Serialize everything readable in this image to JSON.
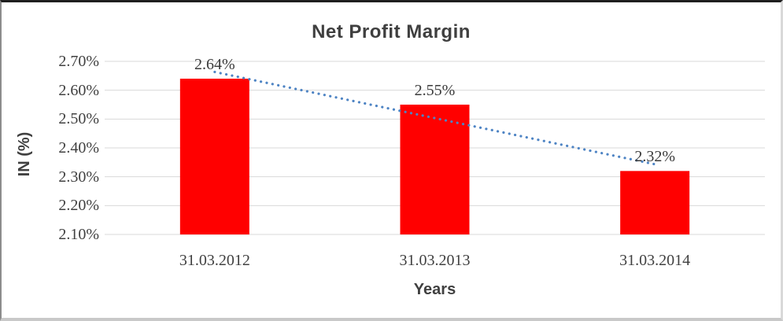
{
  "chart_data": {
    "type": "bar",
    "title": "Net Profit Margin",
    "xlabel": "Years",
    "ylabel": "IN (%)",
    "categories": [
      "31.03.2012",
      "31.03.2013",
      "31.03.2014"
    ],
    "values": [
      2.64,
      2.55,
      2.32
    ],
    "data_labels": [
      "2.64%",
      "2.55%",
      "2.32%"
    ],
    "ylim": [
      2.1,
      2.7
    ],
    "ytick_labels": [
      "2.70%",
      "2.60%",
      "2.50%",
      "2.40%",
      "2.30%",
      "2.20%",
      "2.10%"
    ],
    "grid": true,
    "legend": "none",
    "bar_color": "#FF0000",
    "gridline_color": "#D9D9D9",
    "text_color": "#404040",
    "trendline": {
      "type": "linear",
      "style": "dotted",
      "color": "#4E84C4"
    }
  }
}
